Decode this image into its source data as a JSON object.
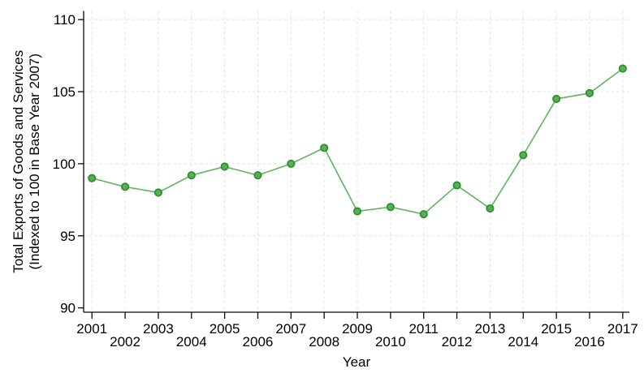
{
  "chart_data": {
    "type": "line",
    "title": "",
    "xlabel": "Year",
    "ylabel_lines": [
      "Total Exports of Goods and Services",
      "(Indexed to 100 in Base Year 2007)"
    ],
    "x": [
      2001,
      2002,
      2003,
      2004,
      2005,
      2006,
      2007,
      2008,
      2009,
      2010,
      2011,
      2012,
      2013,
      2014,
      2015,
      2016,
      2017
    ],
    "series": [
      {
        "name": "Total Exports of Goods and Services (Indexed to 100 in Base Year 2007)",
        "values": [
          99.0,
          98.4,
          98.0,
          99.2,
          99.8,
          99.2,
          100.0,
          101.1,
          96.7,
          97.0,
          96.5,
          98.5,
          96.9,
          100.6,
          104.5,
          104.9,
          106.6
        ]
      }
    ],
    "yticks": [
      90,
      95,
      100,
      105,
      110
    ],
    "ygrid_ticks": [
      95,
      100,
      105,
      110
    ],
    "ylim": [
      89.7,
      110.6
    ],
    "xlim": [
      2000.75,
      2017.2
    ],
    "grid": "dashed-both",
    "legend_position": "none",
    "staggered_x_labels": true,
    "marker": "circle",
    "colors": {
      "line": "#5cb65c",
      "marker_fill": "#57b057",
      "marker_stroke": "#2e8b2e",
      "grid": "#e3e3e3",
      "axis": "#0a0a0a",
      "text": "#000000",
      "background": "#ffffff"
    }
  }
}
